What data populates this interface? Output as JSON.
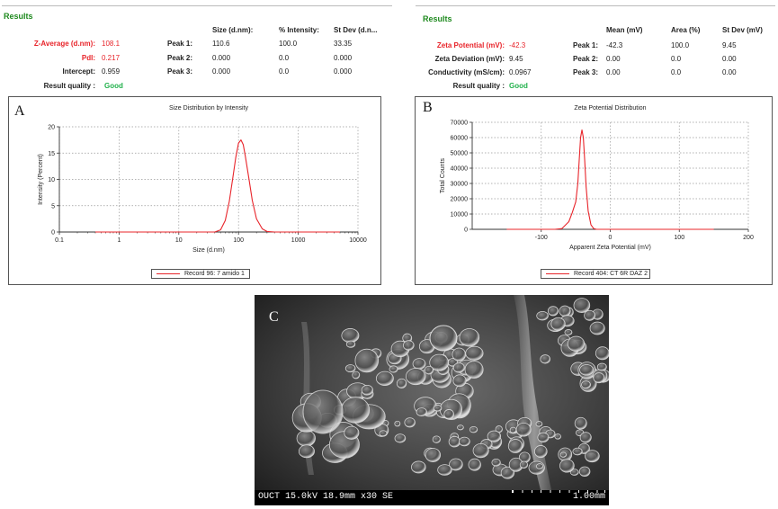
{
  "size_results": {
    "title": "Results",
    "col_headers": [
      "Size (d.nm):",
      "% Intensity:",
      "St Dev (d.n..."
    ],
    "z_average": {
      "label": "Z-Average (d.nm):",
      "value": "108.1"
    },
    "pdi": {
      "label": "PdI:",
      "value": "0.217"
    },
    "intercept": {
      "label": "Intercept:",
      "value": "0.959"
    },
    "quality": {
      "label": "Result quality :",
      "value": "Good"
    },
    "peaks": [
      {
        "label": "Peak 1:",
        "size": "110.6",
        "intensity": "100.0",
        "stdev": "33.35"
      },
      {
        "label": "Peak 2:",
        "size": "0.000",
        "intensity": "0.0",
        "stdev": "0.000"
      },
      {
        "label": "Peak 3:",
        "size": "0.000",
        "intensity": "0.0",
        "stdev": "0.000"
      }
    ]
  },
  "zeta_results": {
    "title": "Results",
    "col_headers": [
      "Mean (mV)",
      "Area (%)",
      "St Dev (mV)"
    ],
    "zeta_potential": {
      "label": "Zeta Potential (mV):",
      "value": "-42.3"
    },
    "zeta_deviation": {
      "label": "Zeta Deviation (mV):",
      "value": "9.45"
    },
    "conductivity": {
      "label": "Conductivity (mS/cm):",
      "value": "0.0967"
    },
    "quality": {
      "label": "Result quality :",
      "value": "Good"
    },
    "peaks": [
      {
        "label": "Peak 1:",
        "mean": "-42.3",
        "area": "100.0",
        "stdev": "9.45"
      },
      {
        "label": "Peak 2:",
        "mean": "0.00",
        "area": "0.0",
        "stdev": "0.00"
      },
      {
        "label": "Peak 3:",
        "mean": "0.00",
        "area": "0.0",
        "stdev": "0.00"
      }
    ]
  },
  "chart_data": [
    {
      "panel_label": "A",
      "type": "line",
      "title": "Size Distribution by Intensity",
      "xlabel": "Size (d.nm)",
      "ylabel": "Intensity (Percent)",
      "xscale": "log",
      "xlim": [
        0.1,
        10000
      ],
      "ylim": [
        0,
        20
      ],
      "xticks": [
        "0.1",
        "1",
        "10",
        "100",
        "1000",
        "10000"
      ],
      "yticks": [
        "0",
        "5",
        "10",
        "15",
        "20"
      ],
      "grid": true,
      "legend_position": "bottom-center",
      "series": [
        {
          "name": "Record 96: 7 amido 1",
          "color": "#e8242a",
          "x": [
            0.4,
            1,
            10,
            40,
            50,
            60,
            70,
            80,
            90,
            100,
            110,
            120,
            130,
            150,
            170,
            200,
            250,
            300,
            400,
            1000,
            5000
          ],
          "y": [
            0,
            0,
            0,
            0,
            0.4,
            2.2,
            5.8,
            10.2,
            14.2,
            16.9,
            17.5,
            16.6,
            14.4,
            10.0,
            6.0,
            2.5,
            0.6,
            0.1,
            0,
            0,
            0
          ]
        }
      ]
    },
    {
      "panel_label": "B",
      "type": "line",
      "title": "Zeta Potential Distribution",
      "xlabel": "Apparent Zeta Potential (mV)",
      "ylabel": "Total Counts",
      "xlim": [
        -200,
        200
      ],
      "ylim": [
        0,
        70000
      ],
      "xticks": [
        "-100",
        "0",
        "100",
        "200"
      ],
      "yticks": [
        "0",
        "10000",
        "20000",
        "30000",
        "40000",
        "50000",
        "60000",
        "70000"
      ],
      "grid": true,
      "legend_position": "bottom-center",
      "series": [
        {
          "name": "Record 404: CT 6R DAZ 2",
          "color": "#e8242a",
          "x": [
            -150,
            -100,
            -80,
            -70,
            -60,
            -55,
            -50,
            -47,
            -45,
            -43,
            -41,
            -39,
            -37,
            -35,
            -32,
            -28,
            -24,
            -20,
            -10,
            0,
            50,
            150
          ],
          "y": [
            0,
            0,
            0,
            500,
            5000,
            11000,
            18000,
            30000,
            45000,
            60000,
            65000,
            60000,
            45000,
            28000,
            12000,
            3000,
            500,
            0,
            0,
            0,
            0,
            0
          ]
        }
      ]
    }
  ],
  "sem_image": {
    "panel_label": "C",
    "info_text": "OUCT 15.0kV 18.9mm x30 SE",
    "scale_text": "1.00mm"
  }
}
